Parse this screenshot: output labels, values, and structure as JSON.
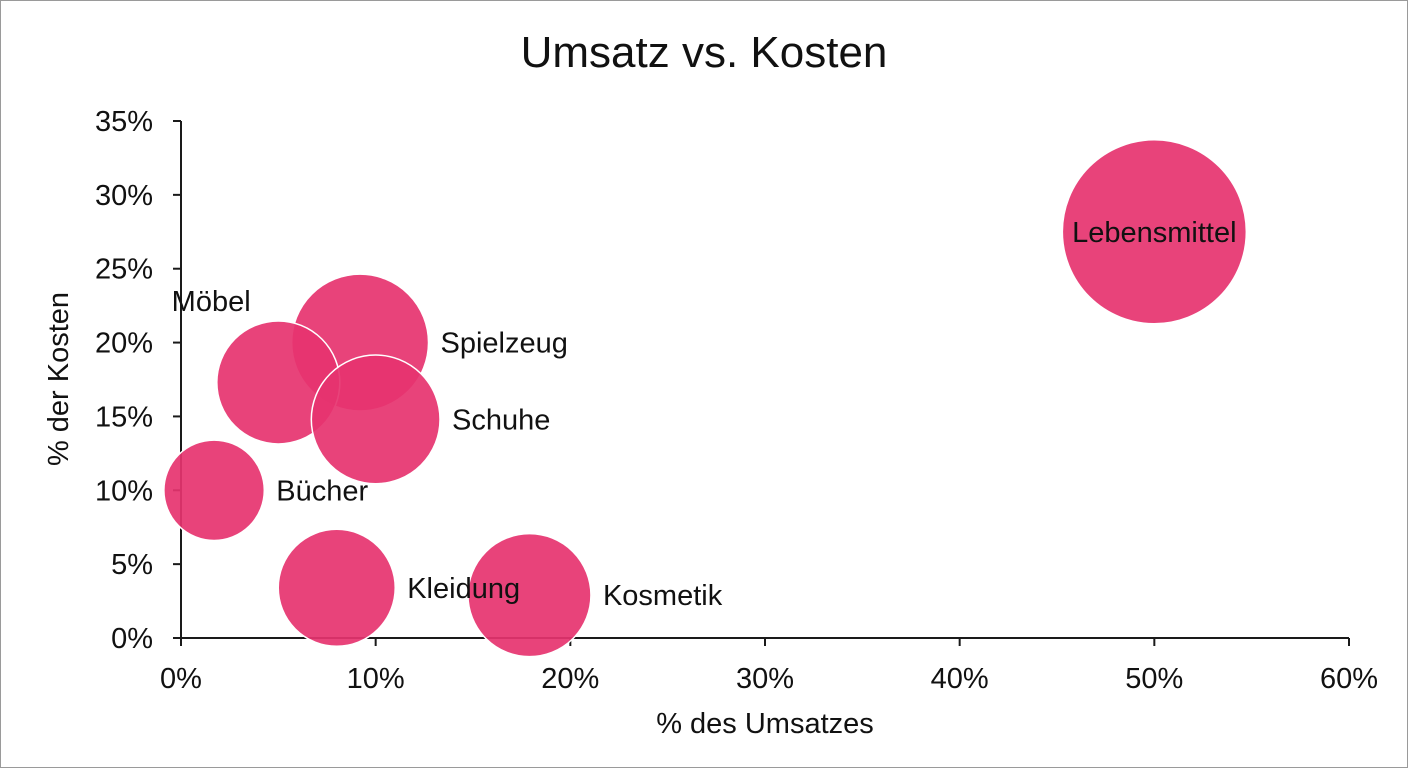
{
  "chart_data": {
    "type": "bubble",
    "title": "Umsatz vs. Kosten",
    "xlabel": "% des Umsatzes",
    "ylabel": "% der Kosten",
    "xlim": [
      0,
      60
    ],
    "ylim": [
      0,
      35
    ],
    "x_ticks": [
      0,
      10,
      20,
      30,
      40,
      50,
      60
    ],
    "y_ticks": [
      0,
      5,
      10,
      15,
      20,
      25,
      30,
      35
    ],
    "x_tick_labels": [
      "0%",
      "10%",
      "20%",
      "30%",
      "40%",
      "50%",
      "60%"
    ],
    "y_tick_labels": [
      "0%",
      "5%",
      "10%",
      "15%",
      "20%",
      "25%",
      "30%",
      "35%"
    ],
    "grid": false,
    "bubble_color": "#e6336f",
    "points": [
      {
        "label": "Lebensmittel",
        "x": 50,
        "y": 27.5,
        "size": 47,
        "label_pos": "center"
      },
      {
        "label": "Spielzeug",
        "x": 9.2,
        "y": 20,
        "size": 26,
        "label_pos": "right"
      },
      {
        "label": "Möbel",
        "x": 5,
        "y": 17.3,
        "size": 21,
        "label_pos": "top-left"
      },
      {
        "label": "Schuhe",
        "x": 10,
        "y": 14.8,
        "size": 23,
        "label_pos": "right"
      },
      {
        "label": "Bücher",
        "x": 1.7,
        "y": 10,
        "size": 14,
        "label_pos": "right"
      },
      {
        "label": "Kleidung",
        "x": 8,
        "y": 3.4,
        "size": 19,
        "label_pos": "right"
      },
      {
        "label": "Kosmetik",
        "x": 17.9,
        "y": 2.9,
        "size": 21,
        "label_pos": "right"
      }
    ]
  }
}
